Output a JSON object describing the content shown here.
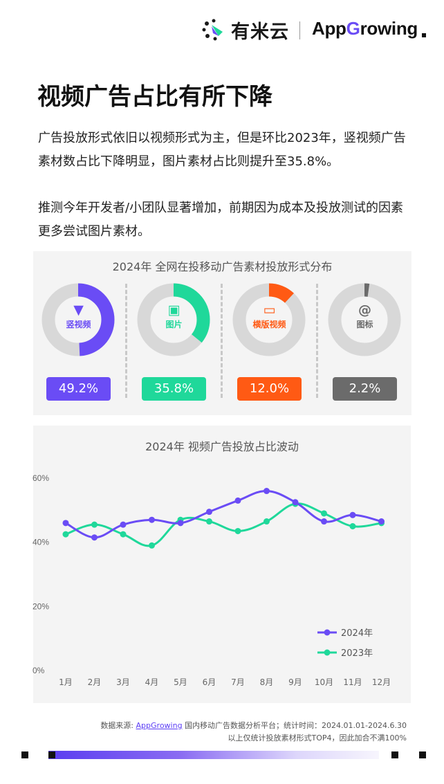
{
  "header": {
    "brand_cn": "有米云",
    "brand_en_left": "App",
    "brand_en_right": "rowing"
  },
  "title": "视频广告占比有所下降",
  "paragraphs": [
    "广告投放形式依旧以视频形式为主，但是环比2023年，竖视频广告素材数占比下降明显，图片素材占比则提升至35.8%。",
    "推测今年开发者/小团队显著增加，前期因为成本及投放测试的因素更多尝试图片素材。"
  ],
  "chart_data": [
    {
      "type": "pie",
      "title": "2024年 全网在投移动广告素材投放形式分布",
      "slices": [
        {
          "label": "竖视频",
          "value": 49.2,
          "value_label": "49.2%",
          "color": "#6a4cf5",
          "icon": "vertical-video-icon",
          "glyph": "▼"
        },
        {
          "label": "图片",
          "value": 35.8,
          "value_label": "35.8%",
          "color": "#1fd89a",
          "icon": "image-icon",
          "glyph": "▣"
        },
        {
          "label": "横版视频",
          "value": 12.0,
          "value_label": "12.0%",
          "color": "#ff5a14",
          "icon": "monitor-icon",
          "glyph": "▭"
        },
        {
          "label": "图标",
          "value": 2.2,
          "value_label": "2.2%",
          "color": "#6b6b6b",
          "icon": "at-sign-icon",
          "glyph": "@"
        }
      ]
    },
    {
      "type": "line",
      "title": "2024年 视频广告投放占比波动",
      "categories": [
        "1月",
        "2月",
        "3月",
        "4月",
        "5月",
        "6月",
        "7月",
        "8月",
        "9月",
        "10月",
        "11月",
        "12月"
      ],
      "yticks": [
        "0%",
        "20%",
        "40%",
        "60%"
      ],
      "ylim": [
        0,
        60
      ],
      "series": [
        {
          "name": "2024年",
          "color": "#6a4cf5",
          "values": [
            46,
            41.5,
            45.5,
            47,
            46,
            49.5,
            53,
            56,
            52.5,
            46.5,
            48.5,
            46.5
          ]
        },
        {
          "name": "2023年",
          "color": "#1fd89a",
          "values": [
            42.5,
            45.5,
            42.5,
            39,
            47,
            46.5,
            43.5,
            46.5,
            52,
            49,
            45,
            46
          ]
        }
      ],
      "legend_position": "bottom-right"
    }
  ],
  "footer": {
    "source_prefix": "数据来源:",
    "source_link": "AppGrowing",
    "source_suffix": "国内移动广告数据分析平台；统计时间：2024.01.01-2024.6.30",
    "note": "以上仅统计投放素材形式TOP4，因此加合不满100%"
  }
}
